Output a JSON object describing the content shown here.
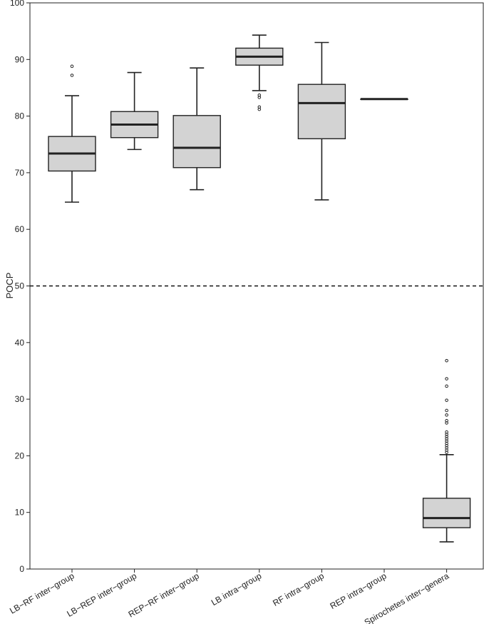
{
  "chart_data": {
    "type": "box",
    "ylabel": "POCP",
    "xlabel": "",
    "ylim": [
      0,
      100
    ],
    "yticks": [
      0,
      10,
      20,
      30,
      40,
      50,
      60,
      70,
      80,
      90,
      100
    ],
    "grid": false,
    "reference_line": {
      "y": 50,
      "style": "dashed"
    },
    "categories": [
      "LB−RF inter−group",
      "LB−REP inter−group",
      "REP−RF inter−group",
      "LB intra−group",
      "RF intra−group",
      "REP intra−group",
      "Spirochetes inter−genera"
    ],
    "boxes": [
      {
        "whisker_low": 64.8,
        "q1": 70.3,
        "median": 73.4,
        "q3": 76.4,
        "whisker_high": 83.6,
        "outliers": [
          87.2,
          88.8
        ]
      },
      {
        "whisker_low": 74.1,
        "q1": 76.2,
        "median": 78.5,
        "q3": 80.8,
        "whisker_high": 87.7,
        "outliers": []
      },
      {
        "whisker_low": 67.0,
        "q1": 70.9,
        "median": 74.4,
        "q3": 80.1,
        "whisker_high": 88.5,
        "outliers": []
      },
      {
        "whisker_low": 84.5,
        "q1": 89.0,
        "median": 90.5,
        "q3": 92.0,
        "whisker_high": 94.3,
        "outliers": [
          81.2,
          81.6,
          83.3,
          83.7
        ]
      },
      {
        "whisker_low": 65.2,
        "q1": 76.0,
        "median": 82.3,
        "q3": 85.6,
        "whisker_high": 93.0,
        "outliers": []
      },
      {
        "whisker_low": 83.0,
        "q1": 83.0,
        "median": 83.0,
        "q3": 83.0,
        "whisker_high": 83.0,
        "outliers": []
      },
      {
        "whisker_low": 4.8,
        "q1": 7.3,
        "median": 9.0,
        "q3": 12.5,
        "whisker_high": 20.2,
        "outliers": [
          20.6,
          21.0,
          21.4,
          21.8,
          22.2,
          22.6,
          23.0,
          23.4,
          23.8,
          24.2,
          25.8,
          26.2,
          27.2,
          28.0,
          29.8,
          32.3,
          33.6,
          36.8
        ]
      }
    ],
    "box_fill": "#d3d3d3",
    "line_color": "#222222"
  }
}
